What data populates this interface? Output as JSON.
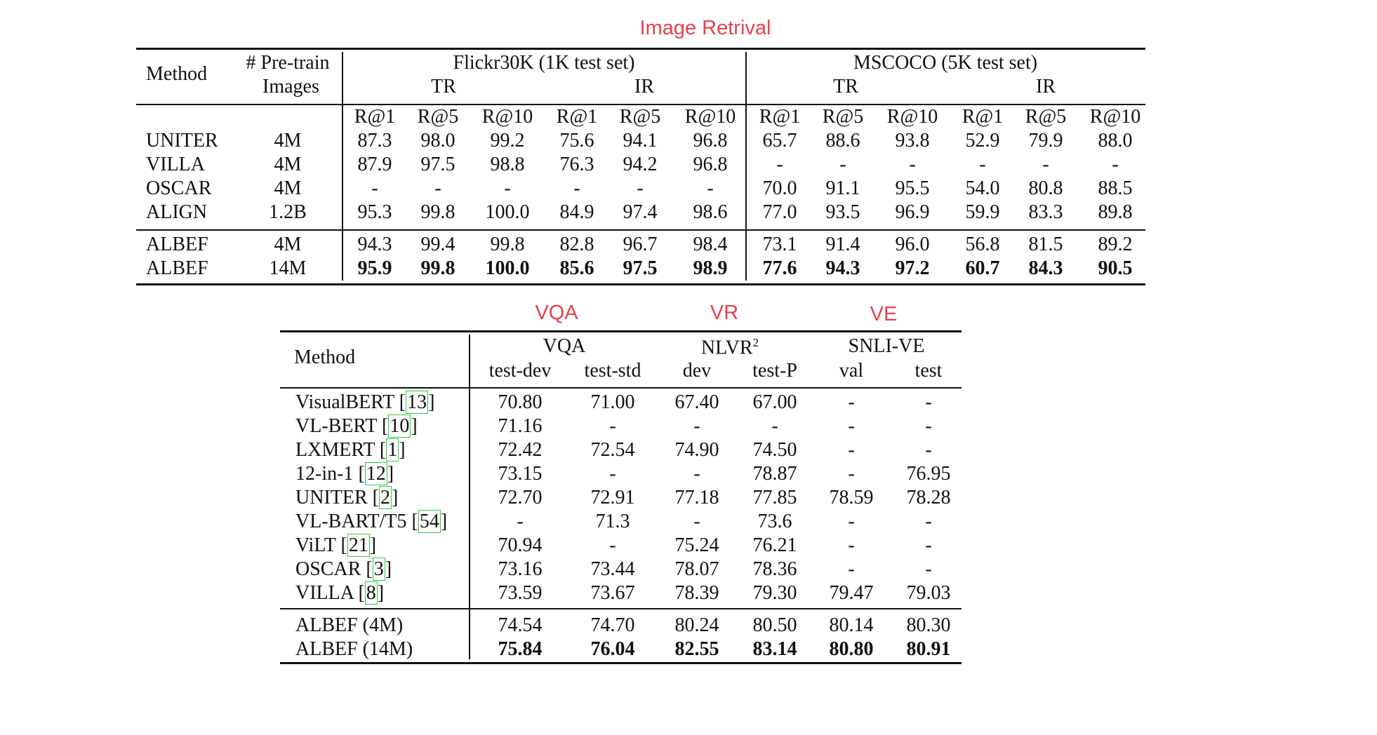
{
  "labels": {
    "image_retrieval": "Image Retrival",
    "vqa": "VQA",
    "vr": "VR",
    "ve": "VE"
  },
  "table1": {
    "header": {
      "method": "Method",
      "pretrain_line1": "# Pre-train",
      "pretrain_line2": "Images",
      "flickr": "Flickr30K (1K test set)",
      "mscoco": "MSCOCO (5K test set)",
      "tr": "TR",
      "ir": "IR",
      "metrics": [
        "R@1",
        "R@5",
        "R@10",
        "R@1",
        "R@5",
        "R@10",
        "R@1",
        "R@5",
        "R@10",
        "R@1",
        "R@5",
        "R@10"
      ]
    },
    "rows": [
      {
        "method": "UNITER",
        "images": "4M",
        "values": [
          "87.3",
          "98.0",
          "99.2",
          "75.6",
          "94.1",
          "96.8",
          "65.7",
          "88.6",
          "93.8",
          "52.9",
          "79.9",
          "88.0"
        ],
        "bold": false
      },
      {
        "method": "VILLA",
        "images": "4M",
        "values": [
          "87.9",
          "97.5",
          "98.8",
          "76.3",
          "94.2",
          "96.8",
          "-",
          "-",
          "-",
          "-",
          "-",
          "-"
        ],
        "bold": false
      },
      {
        "method": "OSCAR",
        "images": "4M",
        "values": [
          "-",
          "-",
          "-",
          "-",
          "-",
          "-",
          "70.0",
          "91.1",
          "95.5",
          "54.0",
          "80.8",
          "88.5"
        ],
        "bold": false
      },
      {
        "method": "ALIGN",
        "images": "1.2B",
        "values": [
          "95.3",
          "99.8",
          "100.0",
          "84.9",
          "97.4",
          "98.6",
          "77.0",
          "93.5",
          "96.9",
          "59.9",
          "83.3",
          "89.8"
        ],
        "bold": false
      },
      {
        "method": "ALBEF",
        "images": "4M",
        "values": [
          "94.3",
          "99.4",
          "99.8",
          "82.8",
          "96.7",
          "98.4",
          "73.1",
          "91.4",
          "96.0",
          "56.8",
          "81.5",
          "89.2"
        ],
        "bold": false
      },
      {
        "method": "ALBEF",
        "images": "14M",
        "values": [
          "95.9",
          "99.8",
          "100.0",
          "85.6",
          "97.5",
          "98.9",
          "77.6",
          "94.3",
          "97.2",
          "60.7",
          "84.3",
          "90.5"
        ],
        "bold": true
      }
    ]
  },
  "table2": {
    "header": {
      "method": "Method",
      "vqa": "VQA",
      "nlvr": "NLVR",
      "nlvr_sup": "2",
      "snli": "SNLI-VE",
      "sub": [
        "test-dev",
        "test-std",
        "dev",
        "test-P",
        "val",
        "test"
      ]
    },
    "rows": [
      {
        "name": "VisualBERT",
        "ref": "13",
        "values": [
          "70.80",
          "71.00",
          "67.40",
          "67.00",
          "-",
          "-"
        ],
        "bold": false
      },
      {
        "name": "VL-BERT",
        "ref": "10",
        "values": [
          "71.16",
          "-",
          "-",
          "-",
          "-",
          "-"
        ],
        "bold": false
      },
      {
        "name": "LXMERT",
        "ref": "1",
        "values": [
          "72.42",
          "72.54",
          "74.90",
          "74.50",
          "-",
          "-"
        ],
        "bold": false
      },
      {
        "name": "12-in-1",
        "ref": "12",
        "values": [
          "73.15",
          "-",
          "-",
          "78.87",
          "-",
          "76.95"
        ],
        "bold": false
      },
      {
        "name": "UNITER",
        "ref": "2",
        "values": [
          "72.70",
          "72.91",
          "77.18",
          "77.85",
          "78.59",
          "78.28"
        ],
        "bold": false
      },
      {
        "name": "VL-BART/T5",
        "ref": "54",
        "values": [
          "-",
          "71.3",
          "-",
          "73.6",
          "-",
          "-"
        ],
        "bold": false
      },
      {
        "name": "ViLT",
        "ref": "21",
        "values": [
          "70.94",
          "-",
          "75.24",
          "76.21",
          "-",
          "-"
        ],
        "bold": false
      },
      {
        "name": "OSCAR",
        "ref": "3",
        "values": [
          "73.16",
          "73.44",
          "78.07",
          "78.36",
          "-",
          "-"
        ],
        "bold": false
      },
      {
        "name": "VILLA",
        "ref": "8",
        "values": [
          "73.59",
          "73.67",
          "78.39",
          "79.30",
          "79.47",
          "79.03"
        ],
        "bold": false
      },
      {
        "name": "ALBEF (4M)",
        "ref": "",
        "values": [
          "74.54",
          "74.70",
          "80.24",
          "80.50",
          "80.14",
          "80.30"
        ],
        "bold": false
      },
      {
        "name": "ALBEF (14M)",
        "ref": "",
        "values": [
          "75.84",
          "76.04",
          "82.55",
          "83.14",
          "80.80",
          "80.91"
        ],
        "bold": true
      }
    ]
  },
  "colors": {
    "label_red": "#e8414a",
    "citation_green": "#2ecc40",
    "text": "#111111"
  }
}
